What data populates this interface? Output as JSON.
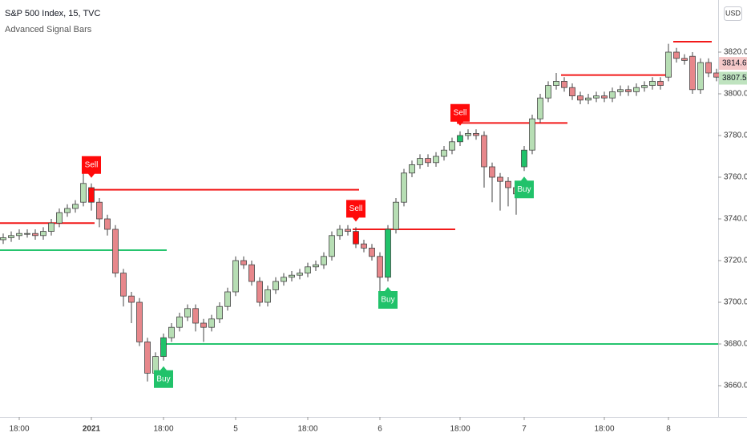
{
  "chart_data": {
    "type": "candlestick",
    "title": "S&P 500 Index, 15, TVC",
    "subtitle": "Advanced Signal Bars",
    "currency": "USD",
    "categories": [
      null,
      null,
      "18:00",
      null,
      null,
      null,
      null,
      null,
      null,
      null,
      null,
      "2021",
      null,
      null,
      null,
      null,
      null,
      null,
      null,
      null,
      "18:00",
      null,
      null,
      null,
      null,
      null,
      null,
      null,
      null,
      "5",
      null,
      null,
      null,
      null,
      null,
      null,
      null,
      null,
      "18:00",
      null,
      null,
      null,
      null,
      null,
      null,
      null,
      null,
      "6",
      null,
      null,
      null,
      null,
      null,
      null,
      null,
      null,
      null,
      "18:00",
      null,
      null,
      null,
      null,
      null,
      null,
      null,
      "7",
      null,
      null,
      null,
      null,
      null,
      null,
      null,
      null,
      null,
      "18:00",
      null,
      null,
      null,
      null,
      null,
      null,
      null,
      "8",
      null,
      null,
      null,
      null,
      null,
      null
    ],
    "open": [
      3730,
      3731,
      3732,
      3733,
      3733,
      3732,
      3734,
      3738,
      3743,
      3745,
      3748,
      3755,
      3748,
      3740,
      3735,
      3714,
      3703,
      3700,
      3681,
      3666,
      3674,
      3683,
      3688,
      3693,
      3697,
      3690,
      3688,
      3692,
      3698,
      3705,
      3720,
      3718,
      3710,
      3700,
      3706,
      3710,
      3712,
      3713,
      3714,
      3717,
      3718,
      3722,
      3732,
      3735,
      3734,
      3728,
      3726,
      3722,
      3712,
      3735,
      3748,
      3762,
      3766,
      3769,
      3767,
      3770,
      3773,
      3777,
      3780,
      3781,
      3780,
      3765,
      3760,
      3758,
      3755,
      3765,
      3773,
      3788,
      3798,
      3804,
      3806,
      3803,
      3799,
      3797,
      3798,
      3799,
      3798,
      3801,
      3802,
      3801,
      3803,
      3804,
      3806,
      3808,
      3820,
      3817,
      3818,
      3802,
      3815,
      3810
    ],
    "high": [
      3733,
      3734,
      3735,
      3735,
      3735,
      3736,
      3740,
      3745,
      3747,
      3749,
      3770,
      3757,
      3750,
      3742,
      3737,
      3716,
      3705,
      3702,
      3683,
      3676,
      3685,
      3690,
      3695,
      3699,
      3699,
      3692,
      3694,
      3700,
      3707,
      3722,
      3722,
      3720,
      3712,
      3708,
      3712,
      3714,
      3715,
      3716,
      3719,
      3720,
      3724,
      3734,
      3737,
      3737,
      3736,
      3730,
      3728,
      3724,
      3737,
      3750,
      3764,
      3768,
      3771,
      3771,
      3772,
      3775,
      3779,
      3782,
      3783,
      3783,
      3782,
      3767,
      3762,
      3760,
      3757,
      3775,
      3790,
      3800,
      3806,
      3810,
      3808,
      3805,
      3801,
      3800,
      3801,
      3801,
      3803,
      3804,
      3804,
      3805,
      3806,
      3808,
      3808,
      3824,
      3822,
      3819,
      3820,
      3817,
      3817,
      3812
    ],
    "low": [
      3728,
      3729,
      3730,
      3731,
      3730,
      3730,
      3732,
      3736,
      3741,
      3743,
      3746,
      3744,
      3736,
      3732,
      3712,
      3698,
      3690,
      3679,
      3662,
      3664,
      3672,
      3681,
      3686,
      3691,
      3686,
      3681,
      3686,
      3690,
      3696,
      3703,
      3716,
      3708,
      3698,
      3698,
      3704,
      3708,
      3710,
      3711,
      3712,
      3715,
      3716,
      3720,
      3730,
      3732,
      3726,
      3724,
      3720,
      3705,
      3710,
      3733,
      3746,
      3760,
      3764,
      3765,
      3765,
      3768,
      3771,
      3775,
      3778,
      3778,
      3755,
      3748,
      3744,
      3746,
      3742,
      3763,
      3771,
      3786,
      3796,
      3802,
      3801,
      3797,
      3795,
      3795,
      3796,
      3796,
      3796,
      3799,
      3799,
      3799,
      3801,
      3802,
      3802,
      3806,
      3815,
      3814,
      3800,
      3800,
      3808,
      3806
    ],
    "close": [
      3731,
      3732,
      3733,
      3733,
      3732,
      3734,
      3738,
      3743,
      3745,
      3747,
      3757,
      3748,
      3740,
      3735,
      3714,
      3703,
      3700,
      3681,
      3666,
      3674,
      3683,
      3688,
      3693,
      3697,
      3690,
      3688,
      3692,
      3698,
      3705,
      3720,
      3718,
      3710,
      3700,
      3706,
      3710,
      3712,
      3713,
      3714,
      3717,
      3718,
      3722,
      3732,
      3735,
      3734,
      3728,
      3726,
      3722,
      3712,
      3735,
      3748,
      3762,
      3766,
      3769,
      3767,
      3770,
      3773,
      3777,
      3780,
      3781,
      3780,
      3765,
      3760,
      3758,
      3755,
      3752,
      3773,
      3788,
      3798,
      3804,
      3806,
      3803,
      3799,
      3797,
      3798,
      3799,
      3798,
      3801,
      3802,
      3801,
      3803,
      3804,
      3806,
      3804,
      3820,
      3817,
      3816,
      3802,
      3815,
      3810,
      3808
    ],
    "signals": [
      null,
      null,
      null,
      null,
      null,
      null,
      null,
      null,
      null,
      null,
      null,
      "Sell",
      null,
      null,
      null,
      null,
      null,
      null,
      null,
      null,
      "Buy",
      null,
      null,
      null,
      null,
      null,
      null,
      null,
      null,
      null,
      null,
      null,
      null,
      null,
      null,
      null,
      null,
      null,
      null,
      null,
      null,
      null,
      null,
      null,
      "Sell",
      null,
      null,
      null,
      "Buy",
      null,
      null,
      null,
      null,
      null,
      null,
      null,
      null,
      "Sell",
      null,
      null,
      null,
      null,
      null,
      null,
      null,
      "Buy",
      null,
      null,
      null,
      null,
      null,
      null,
      null,
      null,
      null,
      null,
      null,
      null,
      null,
      null,
      null,
      null,
      null,
      null,
      null,
      null,
      null,
      null,
      null,
      null
    ],
    "levels": [
      {
        "value": 3738,
        "start": 0,
        "end": 11,
        "color": "#f21a1a"
      },
      {
        "value": 3754,
        "start": 11,
        "end": 44,
        "color": "#f21a1a"
      },
      {
        "value": 3735,
        "start": 44,
        "end": 56,
        "color": "#f21a1a"
      },
      {
        "value": 3786,
        "start": 57,
        "end": 70,
        "color": "#f21a1a"
      },
      {
        "value": 3809,
        "start": 70,
        "end": 83,
        "color": "#f21a1a"
      },
      {
        "value": 3825,
        "start": 84,
        "end": 88,
        "color": "#f21a1a"
      },
      {
        "value": 3725,
        "start": 0,
        "end": 20,
        "color": "#26c46e"
      },
      {
        "value": 3680,
        "start": 20,
        "end": 89,
        "color": "#26c46e"
      }
    ],
    "price_marks": [
      {
        "value": 3814.6,
        "color": "#f5c9c9"
      },
      {
        "value": 3807.5,
        "color": "#bfe3bf"
      }
    ],
    "up_color": "#b7deb4",
    "down_color": "#e7878b",
    "buy_color": "#21c26a",
    "sell_color": "#ff0a0a",
    "ylim": [
      3645,
      3845
    ],
    "yticks": [
      {
        "value": 3660,
        "label": "3660.0"
      },
      {
        "value": 3680,
        "label": "3680.0"
      },
      {
        "value": 3700,
        "label": "3700.0"
      },
      {
        "value": 3720,
        "label": "3720.0"
      },
      {
        "value": 3740,
        "label": "3740.0"
      },
      {
        "value": 3760,
        "label": "3760.0"
      },
      {
        "value": 3780,
        "label": "3780.0"
      },
      {
        "value": 3800,
        "label": "3800.0"
      },
      {
        "value": 3820,
        "label": "3820.0"
      }
    ]
  }
}
